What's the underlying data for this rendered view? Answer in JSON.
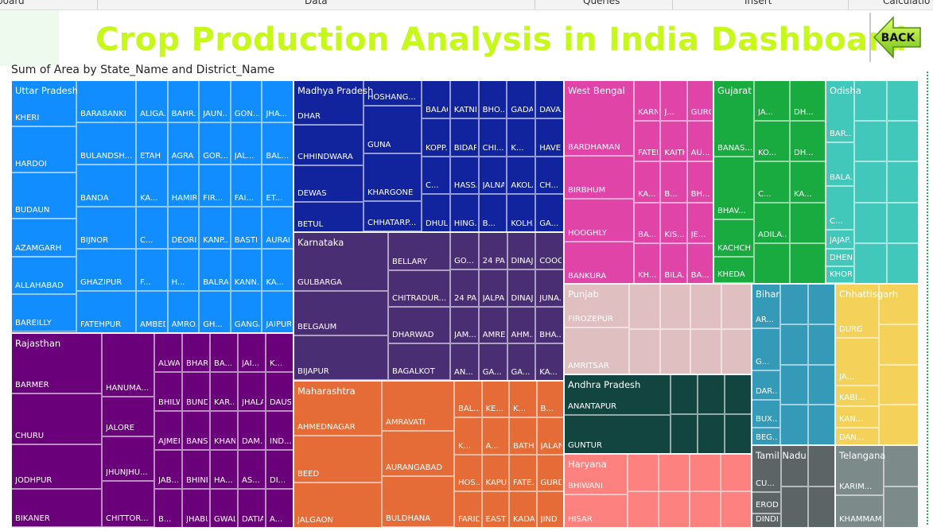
{
  "ribbon": {
    "tabs": [
      "board",
      "Data",
      "Queries",
      "Insert",
      "Calculatio"
    ]
  },
  "header": {
    "title": "Crop Production Analysis in India Dashboard",
    "back_label": "BACK"
  },
  "chart_data": {
    "type": "treemap",
    "title": "Sum of Area by State_Name and District_Name",
    "measure": "Sum of Area",
    "groups": [
      {
        "name": "Uttar Pradesh",
        "color": "#118dff",
        "cols": [
          {
            "w": 82,
            "items": [
              [
                "KHERI",
                57
              ],
              [
                "HARDOI",
                57
              ],
              [
                "BUDAUN",
                57
              ],
              [
                "AZAMGARH",
                47
              ],
              [
                "ALLAHABAD",
                46
              ],
              [
                "BAREILLY",
                46
              ]
            ]
          },
          {
            "w": 75,
            "items": [
              [
                "BARABANKI",
                39
              ],
              [
                "BULANDSH...",
                39
              ],
              [
                "BANDA",
                39
              ],
              [
                "BIJNOR",
                39
              ],
              [
                "GHAZIPUR",
                39
              ],
              [
                "FATEHPUR",
                39
              ]
            ]
          }
        ]
      },
      {
        "name": "Rajasthan",
        "color": "#6b007b",
        "cols": [
          {
            "w": 114,
            "items": [
              [
                "BARMER",
                76
              ],
              [
                "CHURU",
                64
              ],
              [
                "JODHPUR",
                56
              ],
              [
                "BIKANER",
                48
              ]
            ]
          },
          {
            "w": 66,
            "items": [
              [
                "HANUMA...",
                80
              ],
              [
                "JALORE",
                50
              ],
              [
                "JHUNJHU...",
                56
              ],
              [
                "CHITTOR...",
                58
              ]
            ]
          }
        ]
      },
      {
        "name": "Madhya Pradesh",
        "color": "#12239e",
        "cols": [
          {
            "w": 88,
            "items": [
              [
                "DHAR",
                55
              ],
              [
                "CHHINDWARA",
                50
              ],
              [
                "DEWAS",
                45
              ],
              [
                "BETUL",
                38
              ]
            ]
          },
          {
            "w": 73,
            "items": [
              [
                "HOSHANG...",
                27
              ],
              [
                "GUNA",
                50
              ],
              [
                "KHARGONE",
                50
              ],
              [
                "CHHATARP...",
                32
              ]
            ]
          }
        ]
      },
      {
        "name": "Karnataka",
        "color": "#4a2e74",
        "cols": [
          {
            "w": 119,
            "items": [
              [
                "GULBARGA",
                74
              ],
              [
                "BELGAUM",
                56
              ],
              [
                "BIJAPUR",
                56
              ]
            ]
          },
          {
            "w": 78,
            "items": [
              [
                "BELLARY",
                48
              ],
              [
                "CHITRADUR...",
                46
              ],
              [
                "DHARWAD",
                46
              ],
              [
                "BAGALKOT",
                46
              ]
            ]
          }
        ]
      },
      {
        "name": "Maharashtra",
        "color": "#e66c37",
        "cols": [
          {
            "w": 111,
            "items": [
              [
                "AHMEDNAGAR",
                68
              ],
              [
                "BEED",
                58
              ],
              [
                "JALGAON",
                57
              ]
            ]
          },
          {
            "w": 91,
            "items": [
              [
                "AMRAVATI",
                60
              ],
              [
                "AURANGABAD",
                54
              ],
              [
                "BULDHANA",
                61
              ]
            ]
          }
        ]
      },
      {
        "name": "West Bengal",
        "color": "#e044a7",
        "cols": [
          {
            "w": 88,
            "items": [
              [
                "BARDHAMAN",
                95
              ],
              [
                "BIRBHUM",
                54
              ],
              [
                "HOOGHLY",
                54
              ],
              [
                "BANKURA",
                54
              ]
            ]
          }
        ]
      },
      {
        "name": "Gujarat",
        "color": "#1aab40",
        "cols": [
          {
            "w": 51,
            "items": [
              [
                "BANAS...",
                98
              ],
              [
                "BHAV...",
                80
              ],
              [
                "KACHCHH",
                48
              ],
              [
                "KHEDA",
                34
              ]
            ]
          }
        ]
      },
      {
        "name": "Odisha",
        "color": "#41c8ba",
        "cols": [
          {
            "w": 36,
            "items": [
              [
                "BAR...",
                73
              ],
              [
                "BALA...",
                52
              ],
              [
                "C...",
                52
              ],
              [
                "JAJAP...",
                23
              ],
              [
                "DHEN...",
                21
              ],
              [
                "KHOR...",
                20
              ]
            ]
          }
        ]
      },
      {
        "name": "Punjab",
        "color": "#dfbfbf",
        "cols": [
          {
            "w": 82,
            "items": [
              [
                "FIROZEPUR",
                55
              ],
              [
                "AMRITSAR",
                60
              ]
            ]
          }
        ]
      },
      {
        "name": "Andhra Pradesh",
        "color": "#124440",
        "cols": [
          {
            "w": 134,
            "items": [
              [
                "ANANTAPUR",
                50
              ],
              [
                "GUNTUR",
                48
              ]
            ]
          }
        ]
      },
      {
        "name": "Haryana",
        "color": "#fd817e",
        "cols": [
          {
            "w": 80,
            "items": [
              [
                "BHIWANI",
                52
              ],
              [
                "HISAR",
                43
              ]
            ]
          }
        ]
      },
      {
        "name": "Bihar",
        "color": "#3599b8",
        "cols": [
          {
            "w": 36,
            "items": [
              [
                "AR...",
                55
              ],
              [
                "G...",
                52
              ],
              [
                "DAR...",
                36
              ],
              [
                "BUX...",
                34
              ],
              [
                "BEG...",
                23
              ]
            ]
          }
        ]
      },
      {
        "name": "Chhattisgarh",
        "color": "#f4d25a",
        "cols": [
          {
            "w": 55,
            "items": [
              [
                "DURG",
                68
              ],
              [
                "JA...",
                60
              ],
              [
                "KABI...",
                26
              ],
              [
                "KAN...",
                27
              ],
              [
                "DAN...",
                23
              ]
            ]
          }
        ]
      },
      {
        "name": "Tamil Nadu",
        "color": "#5c6466",
        "cols": [
          {
            "w": 37,
            "items": [
              [
                "CU...",
                58
              ],
              [
                "ERODE",
                27
              ],
              [
                "DINDIG...",
                18
              ]
            ]
          }
        ]
      },
      {
        "name": "Telangana",
        "color": "#7d8a8a",
        "cols": [
          {
            "w": 61,
            "items": [
              [
                "KARIM...",
                64
              ],
              [
                "KHAMMAM",
                41
              ]
            ]
          }
        ]
      }
    ],
    "small_labels": [
      "ALIGA...",
      "BAHR...",
      "JAUN...",
      "GON...",
      "JHA...",
      "ETAH",
      "AGRA",
      "GOR...",
      "JAL...",
      "BAL...",
      "KA...",
      "HAMIRP...",
      "FIR...",
      "FAI...",
      "ET...",
      "C...",
      "DEORIA",
      "KANP...",
      "BASTI",
      "AURAI...",
      "F...",
      "H...",
      "BALRAM...",
      "KANN...",
      "KA...",
      "AMBEDK...",
      "AMRO...",
      "GH...",
      "GANGA...",
      "JAIPUR",
      "ALWAR",
      "BHARATPUR",
      "BA...",
      "JAI...",
      "K...",
      "BHILWARA",
      "BUNDI",
      "KAR...",
      "JHALAWAR",
      "DAUSA",
      "AJMER",
      "BANSWA...",
      "KHAN...",
      "DAM...",
      "IND...",
      "JAB...",
      "BHIND",
      "HA...",
      "AS...",
      "DI...",
      "B...",
      "JHABUA",
      "GWAL...",
      "DATIA",
      "A...",
      "BALAG...",
      "KATNI",
      "BHO...",
      "GADAG",
      "DAVA...",
      "KOPP...",
      "BIDAR",
      "CHI...",
      "K...",
      "HAVERI",
      "C...",
      "HASSAN",
      "JALNA",
      "AKOLA",
      "CH...",
      "DHULE",
      "HING...",
      "B...",
      "KOLHAP...",
      "GA...",
      "GO...",
      "24 PAR...",
      "DINAJ...",
      "COOC...",
      "24 PA...",
      "JALPAIGURI",
      "DINAJPUR ...",
      "JUNA...",
      "JAM...",
      "AMRELI",
      "AHM...",
      "BHA...",
      "AN...",
      "GA...",
      "GA...",
      "KA...",
      "BAL...",
      "KE...",
      "K...",
      "B...",
      "K...",
      "A...",
      "BATHIN...",
      "JALAN...",
      "HOS...",
      "KAPUR...",
      "FATE...",
      "GURDAS...",
      "FARIDK...",
      "EAST GODA...",
      "KADAPA",
      "JIND",
      "KARN...",
      "J...",
      "GURG...",
      "FATEHA...",
      "KAITH...",
      "AU...",
      "KA...",
      "B...",
      "BH...",
      "BA...",
      "KIS...",
      "JE...",
      "KH...",
      "BILA...",
      "BA...",
      "JA...",
      "DH...",
      "KO...",
      "DH...",
      "C...",
      "KA...",
      "ADILA..."
    ]
  }
}
